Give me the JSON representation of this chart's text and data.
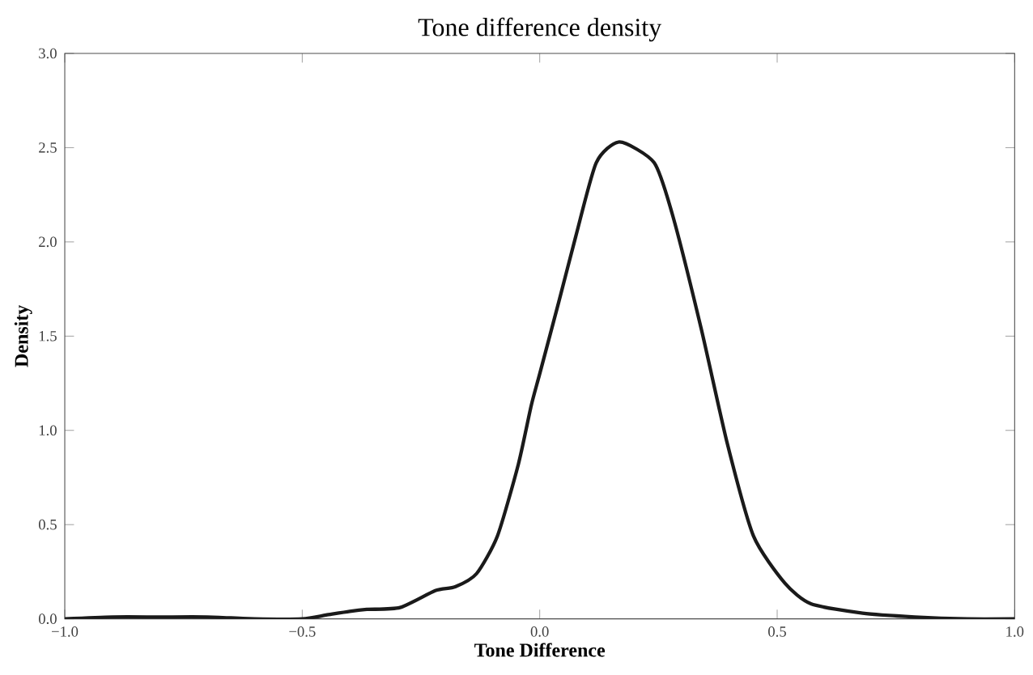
{
  "chart_data": {
    "type": "line",
    "title": "Tone difference density",
    "xlabel": "Tone Difference",
    "ylabel": "Density",
    "x": [
      -1.0,
      -0.9,
      -0.8,
      -0.7,
      -0.6,
      -0.5,
      -0.45,
      -0.4,
      -0.364,
      -0.294,
      -0.22,
      -0.178,
      -0.133,
      -0.089,
      -0.045,
      -0.018,
      0.0,
      0.04,
      0.076,
      0.119,
      0.168,
      0.241,
      0.28,
      0.34,
      0.395,
      0.45,
      0.516,
      0.571,
      0.68,
      0.79,
      0.9,
      1.0
    ],
    "series": [
      {
        "color": "#1a1a1a",
        "values": [
          0.0,
          0.01,
          0.01,
          0.01,
          0.0,
          0.0,
          0.02,
          0.04,
          0.05,
          0.06,
          0.15,
          0.17,
          0.24,
          0.44,
          0.82,
          1.13,
          1.3,
          1.68,
          2.03,
          2.42,
          2.53,
          2.42,
          2.14,
          1.54,
          0.93,
          0.44,
          0.19,
          0.08,
          0.03,
          0.01,
          0.0,
          0.0
        ]
      }
    ],
    "xlim": [
      -1.0,
      1.0
    ],
    "ylim": [
      0.0,
      3.0
    ],
    "xticks": [
      {
        "value": -1.0,
        "label": "−1.0"
      },
      {
        "value": -0.5,
        "label": "−0.5"
      },
      {
        "value": 0.0,
        "label": "0.0"
      },
      {
        "value": 0.5,
        "label": "0.5"
      },
      {
        "value": 1.0,
        "label": "1.0"
      }
    ],
    "yticks": [
      {
        "value": 0.0,
        "label": "0.0"
      },
      {
        "value": 0.5,
        "label": "0.5"
      },
      {
        "value": 1.0,
        "label": "1.0"
      },
      {
        "value": 1.5,
        "label": "1.5"
      },
      {
        "value": 2.0,
        "label": "2.0"
      },
      {
        "value": 2.5,
        "label": "2.5"
      },
      {
        "value": 3.0,
        "label": "3.0"
      }
    ],
    "grid": false,
    "marker": "none",
    "line_style": "solid"
  }
}
